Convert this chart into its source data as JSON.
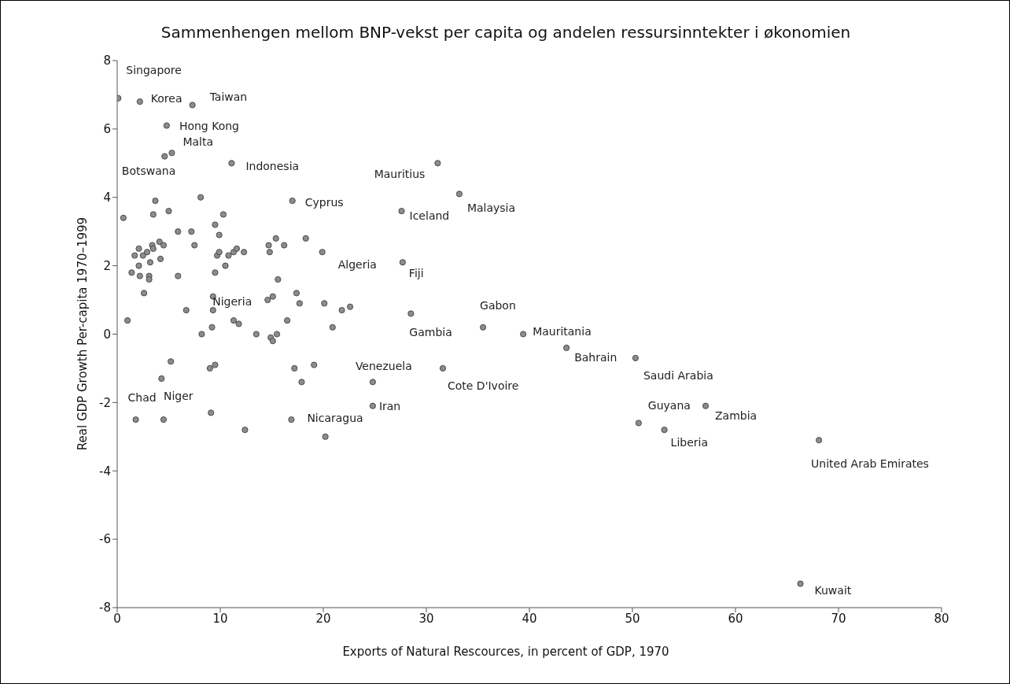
{
  "chart_data": {
    "type": "scatter",
    "title": "Sammenhengen mellom BNP-vekst per capita og andelen ressursinntekter i økonomien",
    "xlabel": "Exports of Natural Rescources, in percent of GDP, 1970",
    "ylabel": "Real GDP Growth Per-capita 1970–1999",
    "x": [
      0.1,
      2.2,
      7.3,
      4.8,
      5.3,
      4.6,
      11.1,
      3.7,
      8.1,
      17.0,
      0.6,
      3.5,
      5.0,
      10.3,
      9.5,
      5.9,
      7.2,
      9.9,
      7.5,
      2.1,
      3.4,
      4.1,
      4.5,
      3.5,
      1.7,
      2.5,
      2.9,
      3.2,
      4.2,
      2.1,
      1.4,
      2.2,
      3.1,
      3.1,
      5.9,
      2.6,
      9.5,
      9.7,
      9.9,
      10.8,
      11.3,
      11.6,
      12.3,
      10.5,
      14.7,
      15.4,
      16.2,
      14.8,
      18.3,
      19.9,
      15.6,
      9.3,
      14.6,
      15.1,
      17.4,
      17.7,
      20.1,
      21.8,
      22.6,
      6.7,
      9.3,
      1.0,
      11.3,
      11.8,
      16.5,
      20.9,
      9.2,
      8.2,
      13.5,
      14.9,
      15.5,
      15.1,
      5.2,
      9.5,
      9.0,
      19.1,
      17.2,
      17.9,
      24.8,
      4.3,
      1.8,
      4.5,
      9.1,
      12.4,
      16.9,
      20.2,
      24.8,
      31.1,
      33.2,
      27.6,
      27.7,
      28.5,
      35.5,
      39.4,
      43.6,
      50.3,
      31.6,
      50.6,
      53.1,
      57.1,
      68.1,
      66.3
    ],
    "values": [
      6.9,
      6.8,
      6.7,
      6.1,
      5.3,
      5.2,
      5.0,
      3.9,
      4.0,
      3.9,
      3.4,
      3.5,
      3.6,
      3.5,
      3.2,
      3.0,
      3.0,
      2.9,
      2.6,
      2.5,
      2.6,
      2.7,
      2.6,
      2.5,
      2.3,
      2.3,
      2.4,
      2.1,
      2.2,
      2.0,
      1.8,
      1.7,
      1.7,
      1.6,
      1.7,
      1.2,
      1.8,
      2.3,
      2.4,
      2.3,
      2.4,
      2.5,
      2.4,
      2.0,
      2.6,
      2.8,
      2.6,
      2.4,
      2.8,
      2.4,
      1.6,
      1.1,
      1.0,
      1.1,
      1.2,
      0.9,
      0.9,
      0.7,
      0.8,
      0.7,
      0.7,
      0.4,
      0.4,
      0.3,
      0.4,
      0.2,
      0.2,
      0.0,
      0.0,
      -0.1,
      0.0,
      -0.2,
      -0.8,
      -0.9,
      -1.0,
      -0.9,
      -1.0,
      -1.4,
      -1.4,
      -1.3,
      -2.5,
      -2.5,
      -2.3,
      -2.8,
      -2.5,
      -3.0,
      -2.1,
      5.0,
      4.1,
      3.6,
      2.1,
      0.6,
      0.2,
      0.0,
      -0.4,
      -0.7,
      -1.0,
      -2.6,
      -2.8,
      -2.1,
      -3.1,
      -7.3
    ],
    "color": "#8c8c8c",
    "marker": "circle",
    "xlim": [
      0,
      80
    ],
    "xticks": [
      0,
      10,
      20,
      30,
      40,
      50,
      60,
      70,
      80
    ],
    "ylim": [
      -8,
      8
    ],
    "yticks": [
      -8,
      -6,
      -4,
      -2,
      0,
      2,
      4,
      6,
      8
    ],
    "grid": false,
    "annotations": [
      {
        "text": "Singapore",
        "x": 0.1,
        "y": 6.9
      },
      {
        "text": "Korea",
        "x": 2.2,
        "y": 6.8
      },
      {
        "text": "Taiwan",
        "x": 7.3,
        "y": 6.7
      },
      {
        "text": "Hong Kong",
        "x": 4.8,
        "y": 6.1
      },
      {
        "text": "Malta",
        "x": 5.3,
        "y": 5.3
      },
      {
        "text": "Botswana",
        "x": 4.6,
        "y": 5.2
      },
      {
        "text": "Indonesia",
        "x": 11.1,
        "y": 5.0
      },
      {
        "text": "Cyprus",
        "x": 17.0,
        "y": 3.9
      },
      {
        "text": "Mauritius",
        "x": 31.1,
        "y": 5.0
      },
      {
        "text": "Iceland",
        "x": 27.6,
        "y": 3.6
      },
      {
        "text": "Malaysia",
        "x": 33.2,
        "y": 4.1
      },
      {
        "text": "Algeria",
        "x": 19.9,
        "y": 2.4
      },
      {
        "text": "Fiji",
        "x": 27.7,
        "y": 2.1
      },
      {
        "text": "Nigeria",
        "x": 14.6,
        "y": 1.0
      },
      {
        "text": "Gabon",
        "x": 35.5,
        "y": 0.2
      },
      {
        "text": "Gambia",
        "x": 28.5,
        "y": 0.6
      },
      {
        "text": "Mauritania",
        "x": 39.4,
        "y": 0.0
      },
      {
        "text": "Bahrain",
        "x": 43.6,
        "y": -0.4
      },
      {
        "text": "Saudi Arabia",
        "x": 50.3,
        "y": -0.7
      },
      {
        "text": "Venezuela",
        "x": 24.8,
        "y": -1.4
      },
      {
        "text": "Cote D'Ivoire",
        "x": 31.6,
        "y": -1.0
      },
      {
        "text": "Chad",
        "x": 1.8,
        "y": -2.5
      },
      {
        "text": "Niger",
        "x": 4.5,
        "y": -2.5
      },
      {
        "text": "Nicaragua",
        "x": 16.9,
        "y": -2.5
      },
      {
        "text": "Iran",
        "x": 24.8,
        "y": -2.1
      },
      {
        "text": "Guyana",
        "x": 50.6,
        "y": -2.6
      },
      {
        "text": "Zambia",
        "x": 57.1,
        "y": -2.1
      },
      {
        "text": "Liberia",
        "x": 53.1,
        "y": -2.8
      },
      {
        "text": "United Arab Emirates",
        "x": 68.1,
        "y": -3.1
      },
      {
        "text": "Kuwait",
        "x": 66.3,
        "y": -7.3
      }
    ]
  }
}
